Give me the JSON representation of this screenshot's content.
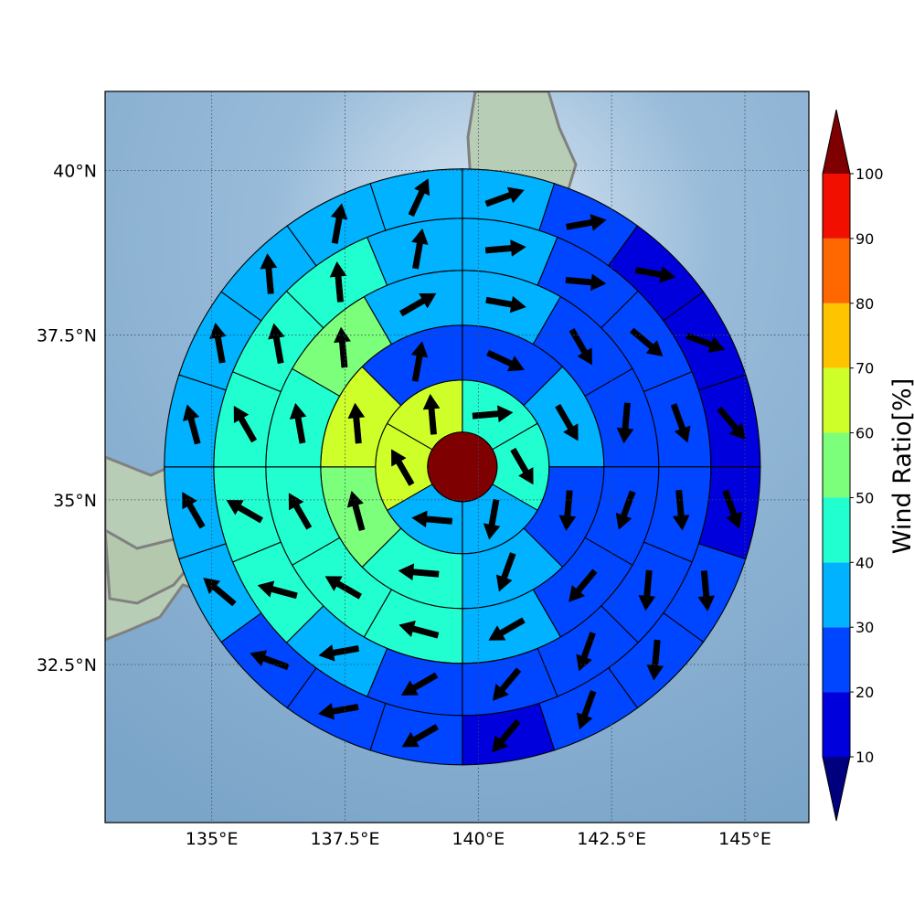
{
  "map": {
    "lon_range": [
      133.0,
      146.2
    ],
    "lat_range": [
      30.1,
      41.2
    ],
    "lon_ticks": [
      {
        "value": 135,
        "label": "135°E"
      },
      {
        "value": 137.5,
        "label": "137.5°E"
      },
      {
        "value": 140,
        "label": "140°E"
      },
      {
        "value": 142.5,
        "label": "142.5°E"
      },
      {
        "value": 145,
        "label": "145°E"
      }
    ],
    "lat_ticks": [
      {
        "value": 40,
        "label": "40°N"
      },
      {
        "value": 37.5,
        "label": "37.5°N"
      },
      {
        "value": 35,
        "label": "35°N"
      },
      {
        "value": 32.5,
        "label": "32.5°N"
      }
    ],
    "gridlines": "dotted",
    "background": "shaded relief with coastlines"
  },
  "colorbar": {
    "label": "Wind Ratio[%]",
    "levels": [
      10,
      20,
      30,
      40,
      50,
      60,
      70,
      80,
      90,
      100
    ],
    "tick_labels": [
      "10",
      "20",
      "30",
      "40",
      "50",
      "60",
      "70",
      "80",
      "90",
      "100"
    ],
    "colors": [
      "#0000dd",
      "#0045ff",
      "#00b2ff",
      "#21ffd0",
      "#7cff7a",
      "#ceff29",
      "#ffc400",
      "#ff6800",
      "#f11000"
    ],
    "under_color": "#00007f",
    "over_color": "#7f0000",
    "extend": "both"
  },
  "chart_data": {
    "type": "polar-grid",
    "center": {
      "lon": 139.7,
      "lat": 35.5,
      "value_class": ">100",
      "color": "#7f0000"
    },
    "rings": [
      {
        "ring": 1,
        "sector_count": 6,
        "values": [
          45,
          45,
          35,
          35,
          65,
          65
        ],
        "arrow_dir_deg": [
          85,
          150,
          190,
          275,
          330,
          355
        ]
      },
      {
        "ring": 2,
        "sector_count": 8,
        "values": [
          25,
          35,
          25,
          30,
          45,
          55,
          65,
          25
        ],
        "arrow_dir_deg": [
          115,
          150,
          185,
          200,
          275,
          345,
          355,
          10
        ]
      },
      {
        "ring": 3,
        "sector_count": 12,
        "values": [
          35,
          25,
          25,
          25,
          25,
          35,
          45,
          45,
          45,
          45,
          55,
          35
        ],
        "arrow_dir_deg": [
          100,
          150,
          185,
          200,
          220,
          240,
          285,
          300,
          330,
          350,
          355,
          60
        ]
      },
      {
        "ring": 4,
        "sector_count": 16,
        "values": [
          35,
          25,
          25,
          25,
          25,
          25,
          25,
          25,
          25,
          35,
          45,
          45,
          45,
          45,
          45,
          35
        ],
        "arrow_dir_deg": [
          85,
          95,
          130,
          160,
          175,
          185,
          200,
          220,
          240,
          260,
          285,
          300,
          330,
          350,
          355,
          10
        ]
      },
      {
        "ring": 5,
        "sector_count": 20,
        "values": [
          35,
          25,
          15,
          15,
          15,
          15,
          25,
          25,
          25,
          15,
          25,
          25,
          25,
          35,
          35,
          35,
          35,
          35,
          35,
          35
        ],
        "arrow_dir_deg": [
          70,
          80,
          100,
          110,
          140,
          160,
          175,
          185,
          200,
          220,
          240,
          260,
          290,
          310,
          330,
          345,
          350,
          355,
          10,
          25
        ]
      }
    ]
  }
}
